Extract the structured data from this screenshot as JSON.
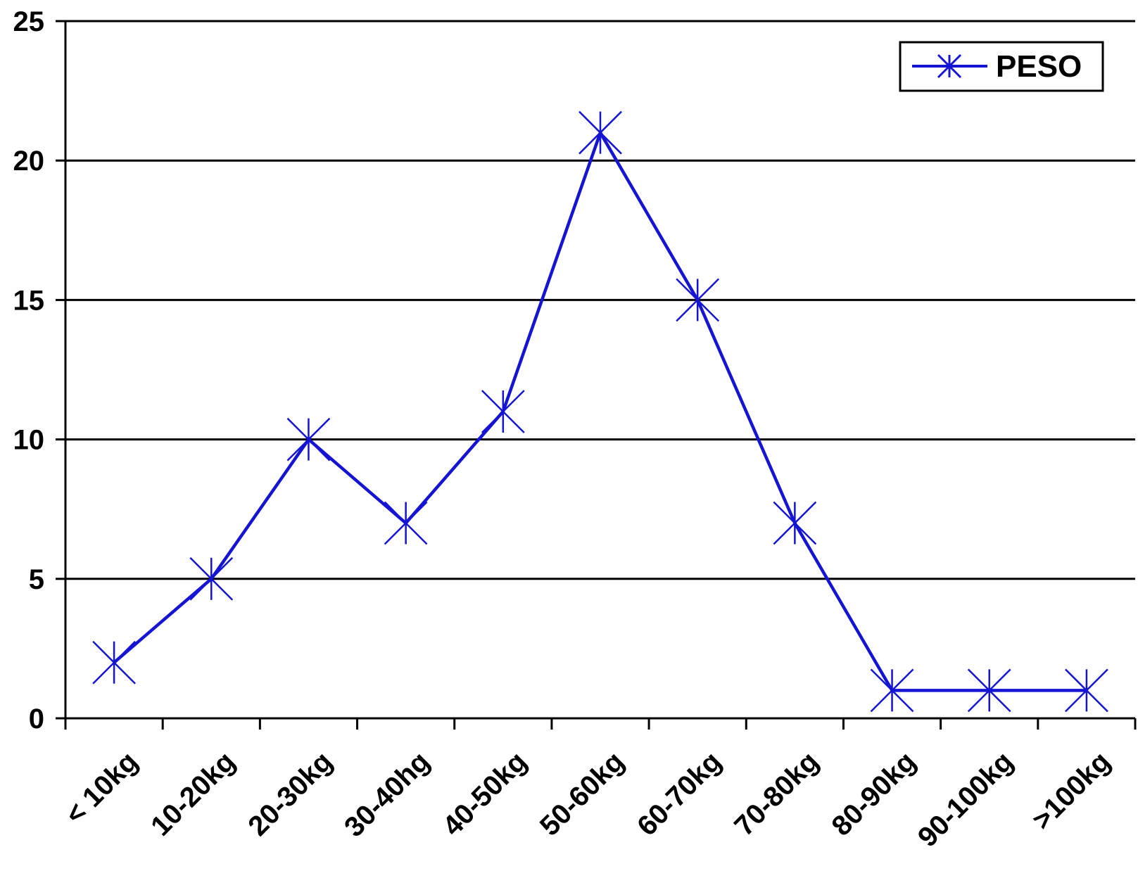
{
  "chart_data": {
    "type": "line",
    "title": "",
    "xlabel": "",
    "ylabel": "",
    "categories": [
      "< 10kg",
      "10-20kg",
      "20-30kg",
      "30-40hg",
      "40-50kg",
      "50-60kg",
      "60-70kg",
      "70-80kg",
      "80-90kg",
      "90-100kg",
      ">100kg"
    ],
    "series": [
      {
        "name": "PESO",
        "values": [
          2,
          5,
          10,
          7,
          11,
          21,
          15,
          7,
          1,
          1,
          1
        ]
      }
    ],
    "ylim": [
      0,
      25
    ],
    "yticks": [
      0,
      5,
      10,
      15,
      20,
      25
    ],
    "grid": "horizontal",
    "legend": "top-right",
    "marker": "asterisk",
    "colors": {
      "series": "#1414D2",
      "grid": "#000000",
      "axis": "#000000"
    }
  }
}
